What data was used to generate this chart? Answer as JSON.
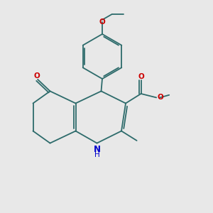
{
  "bg_color": "#e8e8e8",
  "bond_color": "#2d6b6b",
  "o_color": "#cc0000",
  "n_color": "#0000cc",
  "bond_width": 1.3,
  "figsize": [
    3.0,
    3.0
  ],
  "dpi": 100,
  "xlim": [
    0,
    10
  ],
  "ylim": [
    0,
    10
  ]
}
